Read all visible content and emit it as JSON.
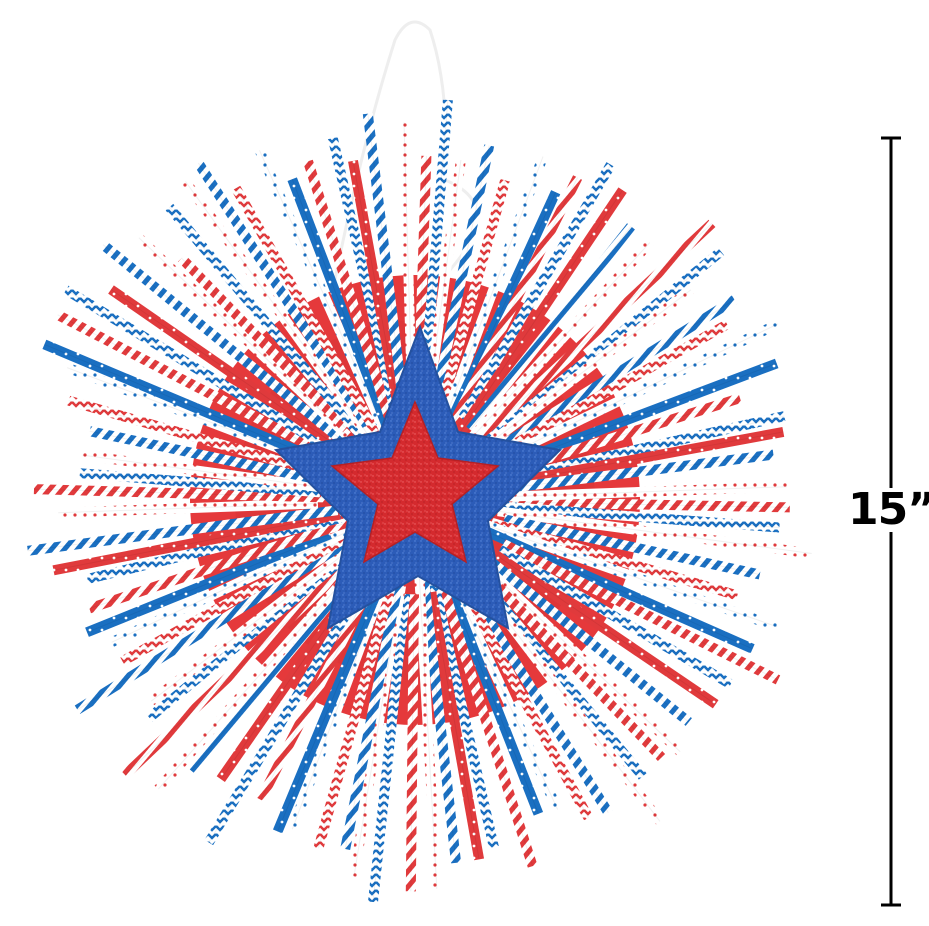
{
  "product": {
    "dimension_label": "15”",
    "colors": {
      "red": "#e03a3c",
      "blue": "#1a6fc1",
      "white": "#ffffff",
      "star_blue": "#2c5cb8",
      "star_red": "#d42a2e",
      "plate_red": "#e5393b",
      "string": "#eeeeee",
      "ruler": "#000000"
    },
    "straw_patterns": [
      "stripe",
      "chevron",
      "dots",
      "stars"
    ]
  }
}
